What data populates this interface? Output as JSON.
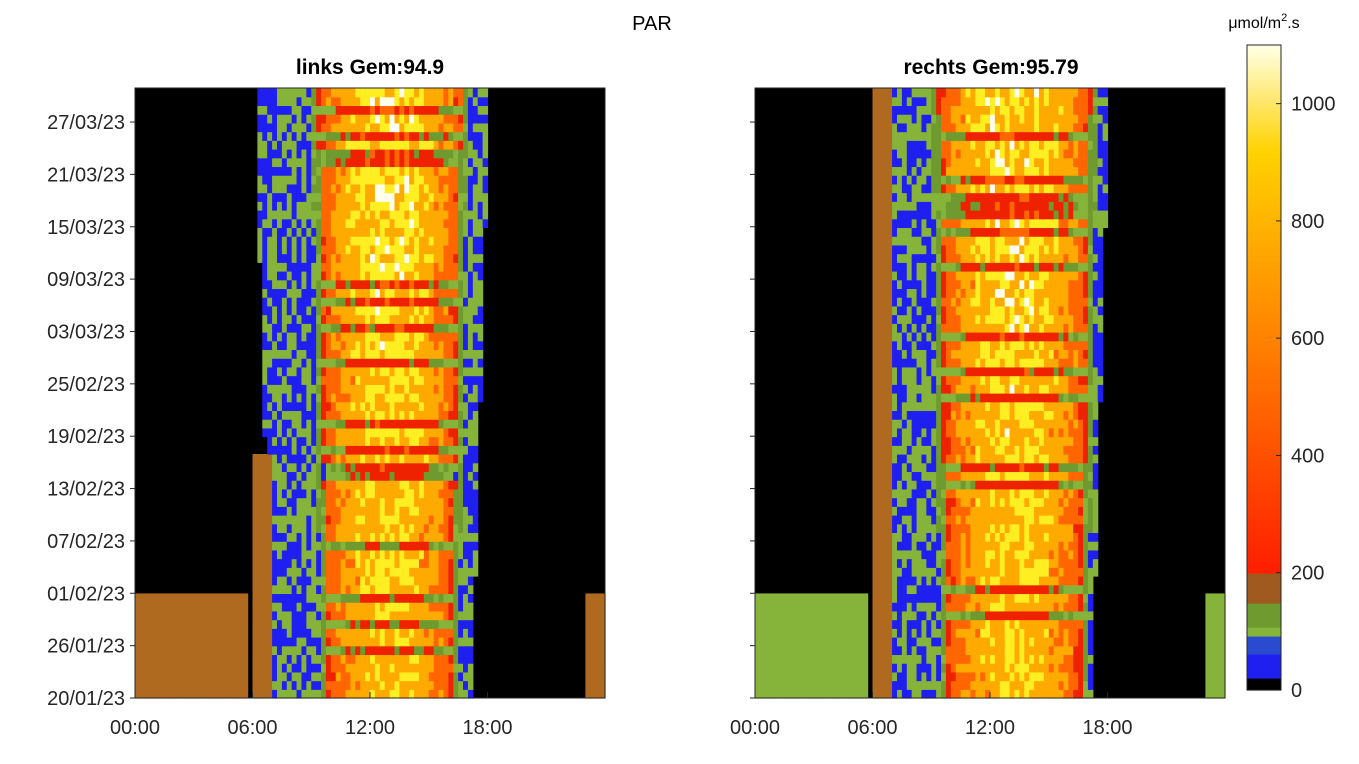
{
  "figure_title": "PAR",
  "colorbar": {
    "unit_label_base": "μmol/m",
    "unit_label_sup": "2",
    "unit_label_tail": ".s",
    "ticks": [
      0,
      200,
      400,
      600,
      800,
      1000
    ],
    "range": [
      0,
      1100
    ]
  },
  "colors": {
    "night": "#000000",
    "brown": "#b06a20",
    "blue": "#1f1ff0",
    "olive": "#6e9a2f",
    "green": "#86b43a",
    "red": "#ee2200",
    "orange": "#ff6600",
    "yellow": "#ffee22",
    "white": "#ffffee"
  },
  "chart_data": [
    {
      "type": "heatmap",
      "title": "links Gem:94.9",
      "xlabel": "",
      "ylabel": "",
      "x_ticks": [
        "00:00",
        "06:00",
        "12:00",
        "18:00"
      ],
      "x_range_hours": [
        0,
        24
      ],
      "y_ticks": [
        "20/01/23",
        "26/01/23",
        "01/02/23",
        "07/02/23",
        "13/02/23",
        "19/02/23",
        "25/02/23",
        "03/03/23",
        "09/03/23",
        "15/03/23",
        "21/03/23",
        "27/03/23"
      ],
      "y_range": [
        "20/01/23",
        "30/03/23"
      ],
      "mean": 94.9,
      "approx_daily_profile": {
        "twilight_start_h": 7.0,
        "sunrise_bright_h": 9.5,
        "peak_h": 13.0,
        "sunset_bright_h": 16.5,
        "dark_h": 17.5,
        "peak_value": 1000,
        "typical_midday_value": 300
      },
      "grid": false,
      "legend": "none"
    },
    {
      "type": "heatmap",
      "title": "rechts Gem:95.79",
      "xlabel": "",
      "ylabel": "",
      "x_ticks": [
        "00:00",
        "06:00",
        "12:00",
        "18:00"
      ],
      "x_range_hours": [
        0,
        24
      ],
      "y_ticks": [],
      "y_range": [
        "20/01/23",
        "30/03/23"
      ],
      "mean": 95.79,
      "approx_daily_profile": {
        "twilight_start_h": 7.0,
        "sunrise_bright_h": 9.5,
        "peak_h": 13.0,
        "sunset_bright_h": 17.0,
        "dark_h": 17.5,
        "peak_value": 1000,
        "typical_midday_value": 300
      },
      "grid": false,
      "legend": "none"
    }
  ]
}
